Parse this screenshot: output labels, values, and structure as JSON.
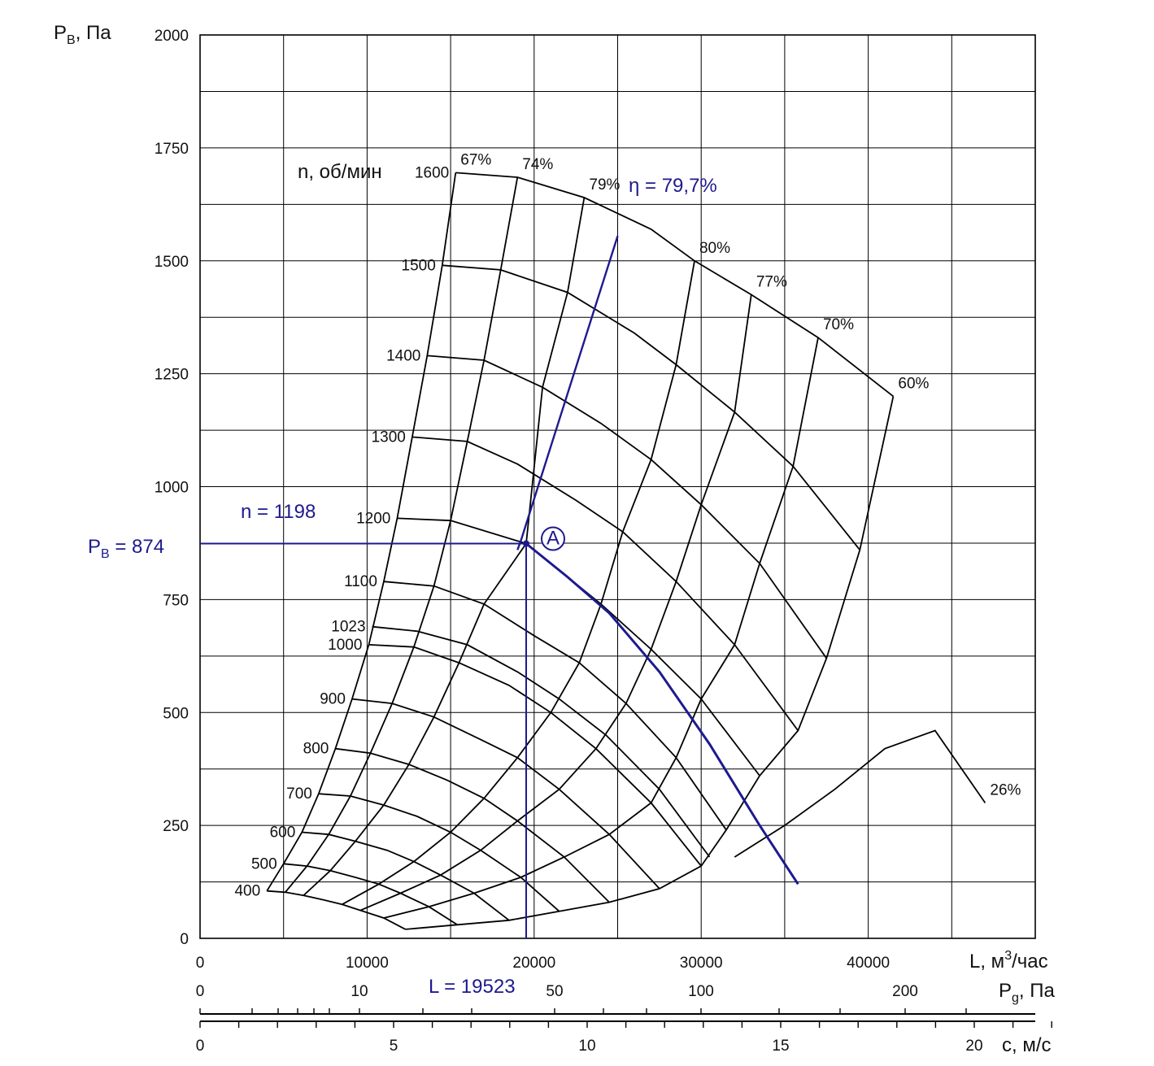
{
  "chart_data": {
    "type": "line",
    "y_axis": {
      "label": "P",
      "label_sub": "B",
      "label_rest": ", Па",
      "range": [
        0,
        2000
      ],
      "ticks": [
        0,
        250,
        500,
        750,
        1000,
        1250,
        1500,
        1750,
        2000
      ]
    },
    "x_axis_flow": {
      "label": "L, м",
      "label_sup": "3",
      "label_rest": "/час",
      "range": [
        0,
        50000
      ],
      "ticks": [
        0,
        10000,
        20000,
        30000,
        40000
      ]
    },
    "x_axis_dynamic_pressure": {
      "label": "P",
      "label_sub": "g",
      "label_rest": ", Па",
      "ticks": [
        0,
        10,
        50,
        100,
        200
      ]
    },
    "x_axis_velocity": {
      "label": "c, м/с",
      "ticks": [
        0,
        5,
        10,
        15,
        20
      ]
    },
    "rpm_title": "n, об/мин",
    "rpm_curves": [
      {
        "name": "1600",
        "points": [
          [
            15300,
            1695
          ],
          [
            19000,
            1685
          ],
          [
            23000,
            1640
          ],
          [
            27000,
            1570
          ],
          [
            29600,
            1500
          ],
          [
            33000,
            1425
          ],
          [
            37000,
            1330
          ],
          [
            41500,
            1200
          ]
        ]
      },
      {
        "name": "1500",
        "points": [
          [
            14500,
            1490
          ],
          [
            18000,
            1480
          ],
          [
            22000,
            1430
          ],
          [
            26000,
            1340
          ],
          [
            28500,
            1270
          ],
          [
            32000,
            1165
          ],
          [
            35500,
            1045
          ],
          [
            39500,
            860
          ]
        ]
      },
      {
        "name": "1400",
        "points": [
          [
            13600,
            1290
          ],
          [
            17000,
            1280
          ],
          [
            20500,
            1220
          ],
          [
            24000,
            1140
          ],
          [
            27000,
            1060
          ],
          [
            30000,
            960
          ],
          [
            33500,
            830
          ],
          [
            37500,
            620
          ]
        ]
      },
      {
        "name": "1300",
        "points": [
          [
            12700,
            1110
          ],
          [
            16000,
            1100
          ],
          [
            19000,
            1050
          ],
          [
            22500,
            970
          ],
          [
            25300,
            900
          ],
          [
            28500,
            790
          ],
          [
            32000,
            650
          ],
          [
            35800,
            460
          ]
        ]
      },
      {
        "name": "1200",
        "points": [
          [
            11800,
            930
          ],
          [
            15000,
            925
          ],
          [
            19523,
            874
          ],
          [
            22000,
            800
          ],
          [
            24000,
            740
          ],
          [
            27000,
            640
          ],
          [
            30000,
            530
          ],
          [
            33500,
            360
          ]
        ]
      },
      {
        "name": "1100",
        "points": [
          [
            11000,
            790
          ],
          [
            14000,
            780
          ],
          [
            17000,
            740
          ],
          [
            20000,
            670
          ],
          [
            22700,
            610
          ],
          [
            25500,
            520
          ],
          [
            28500,
            400
          ],
          [
            31500,
            240
          ]
        ]
      },
      {
        "name": "1023",
        "points": [
          [
            10300,
            690
          ],
          [
            13000,
            680
          ],
          [
            16000,
            650
          ],
          [
            19000,
            590
          ],
          [
            21500,
            530
          ],
          [
            24300,
            450
          ],
          [
            27500,
            330
          ],
          [
            30500,
            180
          ]
        ]
      },
      {
        "name": "1000",
        "points": [
          [
            10100,
            650
          ],
          [
            12800,
            645
          ],
          [
            15500,
            610
          ],
          [
            18500,
            560
          ],
          [
            21000,
            500
          ],
          [
            23700,
            420
          ],
          [
            27000,
            300
          ],
          [
            30000,
            160
          ]
        ]
      },
      {
        "name": "900",
        "points": [
          [
            9100,
            530
          ],
          [
            11500,
            520
          ],
          [
            14000,
            490
          ],
          [
            16800,
            440
          ],
          [
            19000,
            400
          ],
          [
            21500,
            330
          ],
          [
            24500,
            230
          ],
          [
            27500,
            110
          ]
        ]
      },
      {
        "name": "800",
        "points": [
          [
            8100,
            420
          ],
          [
            10200,
            410
          ],
          [
            12500,
            385
          ],
          [
            14800,
            350
          ],
          [
            17000,
            310
          ],
          [
            19000,
            260
          ],
          [
            21800,
            180
          ],
          [
            24500,
            80
          ]
        ]
      },
      {
        "name": "700",
        "points": [
          [
            7100,
            320
          ],
          [
            9000,
            315
          ],
          [
            11000,
            295
          ],
          [
            13000,
            270
          ],
          [
            15000,
            235
          ],
          [
            16800,
            195
          ],
          [
            19200,
            135
          ],
          [
            21500,
            60
          ]
        ]
      },
      {
        "name": "600",
        "points": [
          [
            6100,
            235
          ],
          [
            7700,
            230
          ],
          [
            9300,
            215
          ],
          [
            11200,
            195
          ],
          [
            12800,
            170
          ],
          [
            14400,
            140
          ],
          [
            16400,
            100
          ],
          [
            18500,
            40
          ]
        ]
      },
      {
        "name": "500",
        "points": [
          [
            5000,
            165
          ],
          [
            6400,
            160
          ],
          [
            7800,
            150
          ],
          [
            9300,
            135
          ],
          [
            10700,
            120
          ],
          [
            12000,
            100
          ],
          [
            13700,
            70
          ],
          [
            15400,
            30
          ]
        ]
      },
      {
        "name": "400",
        "points": [
          [
            4000,
            105
          ],
          [
            5100,
            102
          ],
          [
            6200,
            95
          ],
          [
            7400,
            85
          ],
          [
            8500,
            75
          ],
          [
            9600,
            62
          ],
          [
            11000,
            45
          ],
          [
            12300,
            20
          ]
        ]
      }
    ],
    "efficiency_lines": [
      {
        "name": "67%",
        "points": [
          [
            15300,
            1695
          ],
          [
            14500,
            1490
          ],
          [
            13600,
            1290
          ],
          [
            12700,
            1110
          ],
          [
            11800,
            930
          ],
          [
            11000,
            790
          ],
          [
            10100,
            650
          ],
          [
            9100,
            530
          ],
          [
            8100,
            420
          ],
          [
            7100,
            320
          ],
          [
            6100,
            235
          ],
          [
            5000,
            165
          ],
          [
            4000,
            105
          ]
        ]
      },
      {
        "name": "74%",
        "points": [
          [
            19000,
            1685
          ],
          [
            18000,
            1480
          ],
          [
            17000,
            1280
          ],
          [
            16000,
            1100
          ],
          [
            15000,
            925
          ],
          [
            14000,
            780
          ],
          [
            12800,
            645
          ],
          [
            11500,
            520
          ],
          [
            10200,
            410
          ],
          [
            9000,
            315
          ],
          [
            7700,
            230
          ],
          [
            6400,
            160
          ],
          [
            5100,
            102
          ]
        ]
      },
      {
        "name": "79%",
        "points": [
          [
            23000,
            1640
          ],
          [
            22000,
            1430
          ],
          [
            20500,
            1220
          ],
          [
            19523,
            874
          ],
          [
            17000,
            740
          ],
          [
            15500,
            610
          ],
          [
            14000,
            490
          ],
          [
            12500,
            385
          ],
          [
            11000,
            295
          ],
          [
            9300,
            215
          ],
          [
            7800,
            150
          ],
          [
            6200,
            95
          ]
        ]
      },
      {
        "name": "80%",
        "points": [
          [
            29600,
            1500
          ],
          [
            28500,
            1270
          ],
          [
            27000,
            1060
          ],
          [
            25300,
            900
          ],
          [
            24000,
            740
          ],
          [
            22700,
            610
          ],
          [
            21000,
            500
          ],
          [
            19000,
            400
          ],
          [
            17000,
            310
          ],
          [
            15000,
            235
          ],
          [
            12800,
            170
          ],
          [
            10700,
            120
          ],
          [
            8500,
            75
          ]
        ]
      },
      {
        "name": "77%",
        "points": [
          [
            33000,
            1425
          ],
          [
            32000,
            1165
          ],
          [
            30000,
            960
          ],
          [
            28500,
            790
          ],
          [
            27000,
            640
          ],
          [
            25500,
            520
          ],
          [
            23700,
            420
          ],
          [
            21500,
            330
          ],
          [
            19000,
            260
          ],
          [
            16800,
            195
          ],
          [
            14400,
            140
          ],
          [
            12000,
            100
          ],
          [
            9600,
            62
          ]
        ]
      },
      {
        "name": "70%",
        "points": [
          [
            37000,
            1330
          ],
          [
            35500,
            1045
          ],
          [
            33500,
            830
          ],
          [
            32000,
            650
          ],
          [
            30000,
            530
          ],
          [
            28500,
            400
          ],
          [
            27000,
            300
          ],
          [
            24500,
            230
          ],
          [
            21800,
            180
          ],
          [
            19200,
            135
          ],
          [
            16400,
            100
          ],
          [
            13700,
            70
          ],
          [
            11000,
            45
          ]
        ]
      },
      {
        "name": "60%",
        "points": [
          [
            41500,
            1200
          ],
          [
            39500,
            860
          ],
          [
            37500,
            620
          ],
          [
            35800,
            460
          ],
          [
            33500,
            360
          ],
          [
            31500,
            240
          ],
          [
            30000,
            160
          ],
          [
            27500,
            110
          ],
          [
            24500,
            80
          ],
          [
            21500,
            60
          ],
          [
            18500,
            40
          ],
          [
            15400,
            30
          ],
          [
            12300,
            20
          ]
        ]
      },
      {
        "name": "26%",
        "points": [
          [
            47000,
            300
          ],
          [
            44000,
            460
          ],
          [
            41000,
            420
          ],
          [
            38000,
            330
          ],
          [
            35000,
            250
          ],
          [
            32000,
            180
          ]
        ]
      }
    ],
    "optimum_line": {
      "name": "η = 79,7%",
      "points": [
        [
          25000,
          1555
        ],
        [
          19200,
          880
        ],
        [
          19000,
          860
        ]
      ]
    },
    "operating_point": {
      "label": "A",
      "flow": 19523,
      "pressure": 874,
      "rpm": 1198,
      "label_n": "n = 1198",
      "label_p_main": "P",
      "label_p_sub": "B",
      "label_p_rest": " = 874",
      "label_l": "L = 19523",
      "duty_curve": [
        [
          19523,
          874
        ],
        [
          22000,
          800
        ],
        [
          24500,
          720
        ],
        [
          27500,
          590
        ],
        [
          30500,
          430
        ],
        [
          33500,
          250
        ],
        [
          35800,
          120
        ]
      ]
    },
    "colors": {
      "grid": "#000000",
      "curves": "#000000",
      "highlight": "#1d1a8e"
    }
  }
}
